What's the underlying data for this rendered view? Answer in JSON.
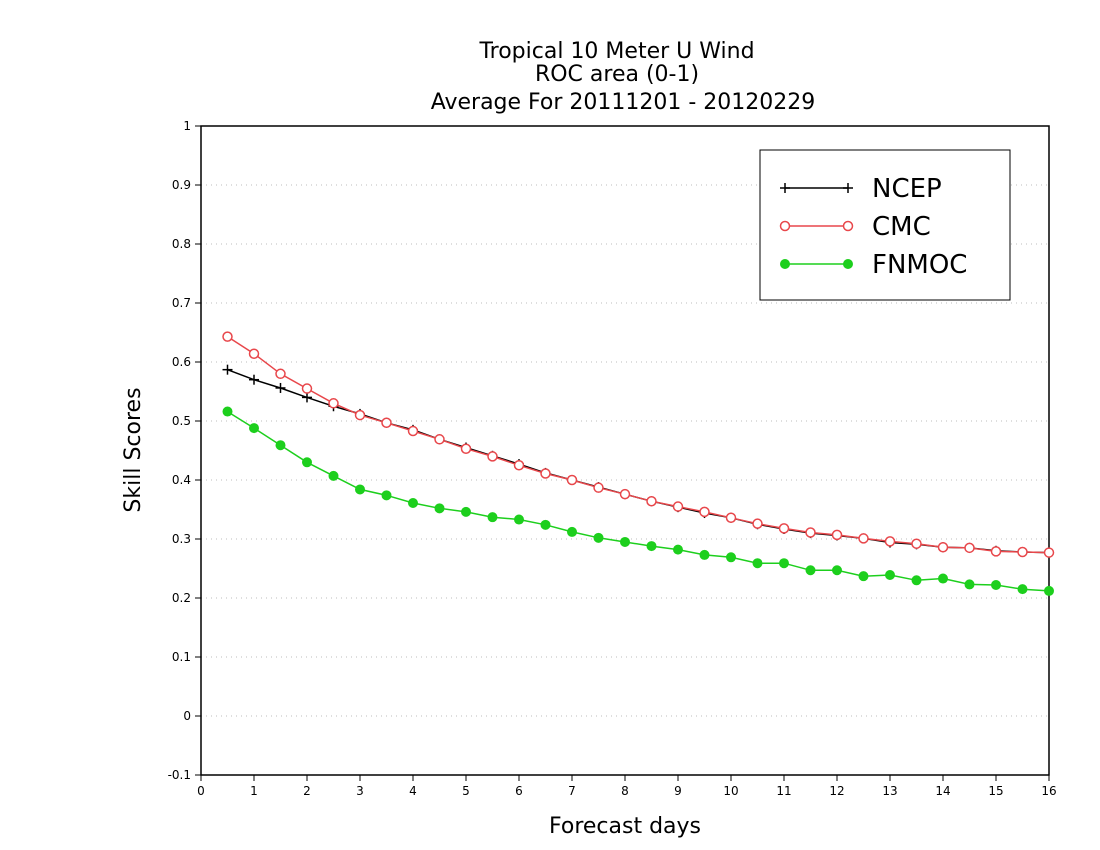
{
  "chart_data": {
    "type": "line",
    "title_lines": [
      "Tropical 10 Meter U Wind",
      "ROC area (0-1)",
      "Average For 20111201 - 20120229"
    ],
    "xlabel": "Forecast days",
    "ylabel": "Skill Scores",
    "xlim": [
      0,
      16
    ],
    "ylim": [
      -0.1,
      1
    ],
    "xticks": [
      "0",
      "1",
      "2",
      "3",
      "4",
      "5",
      "6",
      "7",
      "8",
      "9",
      "10",
      "11",
      "12",
      "13",
      "14",
      "15",
      "16"
    ],
    "yticks": [
      "-0.1",
      "0",
      "0.1",
      "0.2",
      "0.3",
      "0.4",
      "0.5",
      "0.6",
      "0.7",
      "0.8",
      "0.9",
      "1"
    ],
    "grid": true,
    "legend_position": "top-right",
    "x": [
      0.5,
      1,
      1.5,
      2,
      2.5,
      3,
      3.5,
      4,
      4.5,
      5,
      5.5,
      6,
      6.5,
      7,
      7.5,
      8,
      8.5,
      9,
      9.5,
      10,
      10.5,
      11,
      11.5,
      12,
      12.5,
      13,
      13.5,
      14,
      14.5,
      15,
      15.5,
      16
    ],
    "series": [
      {
        "name": "NCEP",
        "color": "#000000",
        "marker": "plus",
        "values": [
          0.587,
          0.57,
          0.556,
          0.54,
          0.525,
          0.512,
          0.497,
          0.485,
          0.469,
          0.455,
          0.441,
          0.427,
          0.412,
          0.4,
          0.388,
          0.376,
          0.364,
          0.354,
          0.344,
          0.336,
          0.325,
          0.317,
          0.31,
          0.306,
          0.301,
          0.294,
          0.291,
          0.286,
          0.285,
          0.28,
          0.278,
          0.277
        ]
      },
      {
        "name": "CMC",
        "color": "#e8474b",
        "marker": "open-circle",
        "values": [
          0.643,
          0.614,
          0.58,
          0.555,
          0.53,
          0.51,
          0.497,
          0.483,
          0.469,
          0.453,
          0.44,
          0.425,
          0.411,
          0.4,
          0.387,
          0.376,
          0.364,
          0.355,
          0.346,
          0.336,
          0.326,
          0.318,
          0.311,
          0.307,
          0.301,
          0.296,
          0.292,
          0.286,
          0.285,
          0.279,
          0.278,
          0.277
        ]
      },
      {
        "name": "FNMOC",
        "color": "#1dcf1d",
        "marker": "filled-circle",
        "values": [
          0.516,
          0.488,
          0.459,
          0.43,
          0.407,
          0.384,
          0.374,
          0.361,
          0.352,
          0.346,
          0.337,
          0.333,
          0.324,
          0.312,
          0.302,
          0.295,
          0.288,
          0.282,
          0.273,
          0.269,
          0.259,
          0.259,
          0.247,
          0.247,
          0.237,
          0.239,
          0.23,
          0.233,
          0.223,
          0.222,
          0.215,
          0.212
        ]
      }
    ]
  }
}
